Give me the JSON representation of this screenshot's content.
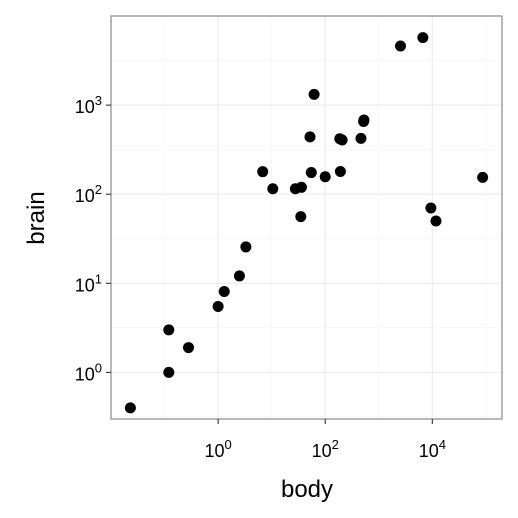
{
  "chart_data": {
    "type": "scatter",
    "title": "",
    "xlabel": "body",
    "ylabel": "brain",
    "xscale": "log10",
    "yscale": "log10",
    "xlim": [
      0.01,
      200000
    ],
    "ylim": [
      0.3,
      10000
    ],
    "x_ticks": [
      {
        "value": 1,
        "base": "10",
        "exp": "0"
      },
      {
        "value": 100,
        "base": "10",
        "exp": "2"
      },
      {
        "value": 10000,
        "base": "10",
        "exp": "4"
      }
    ],
    "y_ticks": [
      {
        "value": 1,
        "base": "10",
        "exp": "0"
      },
      {
        "value": 10,
        "base": "10",
        "exp": "1"
      },
      {
        "value": 100,
        "base": "10",
        "exp": "2"
      },
      {
        "value": 1000,
        "base": "10",
        "exp": "3"
      }
    ],
    "grid": true,
    "legend": "none",
    "point_color": "#000000",
    "points": [
      {
        "x": 0.023,
        "y": 0.4
      },
      {
        "x": 0.12,
        "y": 1.0
      },
      {
        "x": 0.12,
        "y": 3.0
      },
      {
        "x": 0.28,
        "y": 1.9
      },
      {
        "x": 1.0,
        "y": 5.5
      },
      {
        "x": 1.3,
        "y": 8.1
      },
      {
        "x": 2.5,
        "y": 12.1
      },
      {
        "x": 3.3,
        "y": 25.6
      },
      {
        "x": 6.8,
        "y": 179
      },
      {
        "x": 10.5,
        "y": 115
      },
      {
        "x": 27.7,
        "y": 115
      },
      {
        "x": 35,
        "y": 56
      },
      {
        "x": 36,
        "y": 119.5
      },
      {
        "x": 52,
        "y": 440
      },
      {
        "x": 55,
        "y": 175
      },
      {
        "x": 62,
        "y": 1320
      },
      {
        "x": 100,
        "y": 157
      },
      {
        "x": 187,
        "y": 419
      },
      {
        "x": 192,
        "y": 180
      },
      {
        "x": 207,
        "y": 406
      },
      {
        "x": 465,
        "y": 423
      },
      {
        "x": 521,
        "y": 655
      },
      {
        "x": 529,
        "y": 680
      },
      {
        "x": 2547,
        "y": 4603
      },
      {
        "x": 6654,
        "y": 5712
      },
      {
        "x": 9400,
        "y": 70
      },
      {
        "x": 11700,
        "y": 50
      },
      {
        "x": 87000,
        "y": 154.5
      }
    ]
  }
}
